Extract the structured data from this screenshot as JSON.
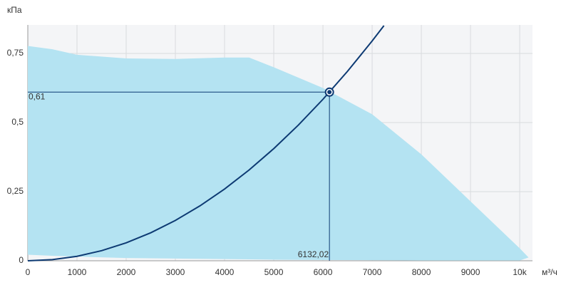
{
  "chart_data": {
    "type": "performance",
    "y_label": "кПа",
    "x_label": "м³/ч",
    "xlim": [
      0,
      10260
    ],
    "ylim": [
      0,
      0.853
    ],
    "xticks": [
      0,
      1000,
      2000,
      3000,
      4000,
      5000,
      6000,
      7000,
      8000,
      9000,
      {
        "value": 10000,
        "label": "10k"
      }
    ],
    "yticks": [
      0,
      {
        "value": 0.25,
        "label": "0,25"
      },
      {
        "value": 0.5,
        "label": "0,5"
      },
      {
        "value": 0.75,
        "label": "0,75"
      }
    ],
    "grid": true,
    "fan_area": {
      "color": "#b4e3f2",
      "x": [
        0,
        500,
        1000,
        2000,
        3000,
        4000,
        4500,
        5000,
        6000,
        7000,
        8000,
        9000,
        10000,
        10180
      ],
      "upper": [
        0.777,
        0.765,
        0.745,
        0.732,
        0.73,
        0.735,
        0.735,
        0.7,
        0.625,
        0.53,
        0.385,
        0.215,
        0.045,
        0.012
      ],
      "lower": [
        0.022,
        0.018,
        0.015,
        0.01,
        0.008,
        0.006,
        0.005,
        0.004,
        0.003,
        0.002,
        0.001,
        0.001,
        0.001,
        0.012
      ]
    },
    "system_curve": {
      "color": "#0d3a73",
      "x": [
        0,
        500,
        1000,
        1500,
        2000,
        2500,
        3000,
        3500,
        4000,
        4500,
        5000,
        5500,
        6000,
        6500,
        7000,
        7240
      ],
      "values": [
        0,
        0.0041,
        0.0162,
        0.0365,
        0.0649,
        0.1014,
        0.146,
        0.1987,
        0.2596,
        0.3285,
        0.4056,
        0.4907,
        0.584,
        0.6854,
        0.7949,
        0.8504
      ]
    },
    "operating_point": {
      "x": 6132.02,
      "y": 0.61,
      "x_label": "6132,02",
      "y_label": "0,61",
      "color": "#0d3a73"
    }
  }
}
